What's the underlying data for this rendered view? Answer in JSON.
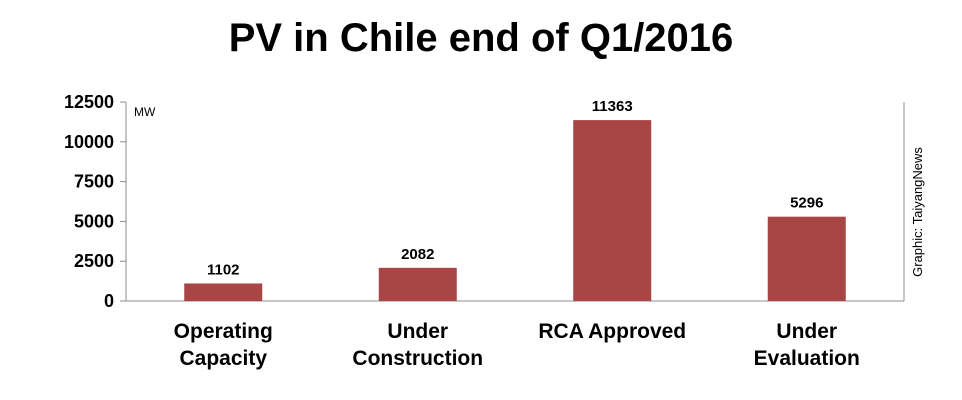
{
  "chart_data": {
    "type": "bar",
    "title": "PV in Chile end of Q1/2016",
    "unit_label": "MW",
    "credit": "Graphic: TaiyangNews",
    "categories": [
      [
        "Operating",
        "Capacity"
      ],
      [
        "Under",
        "Construction"
      ],
      [
        "RCA Approved"
      ],
      [
        "Under",
        "Evaluation"
      ]
    ],
    "values": [
      1102,
      2082,
      11363,
      5296
    ],
    "data_labels": [
      "1102",
      "2082",
      "11363",
      "5296"
    ],
    "ylim": [
      0,
      12500
    ],
    "yticks": [
      0,
      2500,
      5000,
      7500,
      10000,
      12500
    ],
    "grid": false,
    "colors": {
      "bar": "#a84545",
      "axis": "#8c8c8c"
    }
  }
}
